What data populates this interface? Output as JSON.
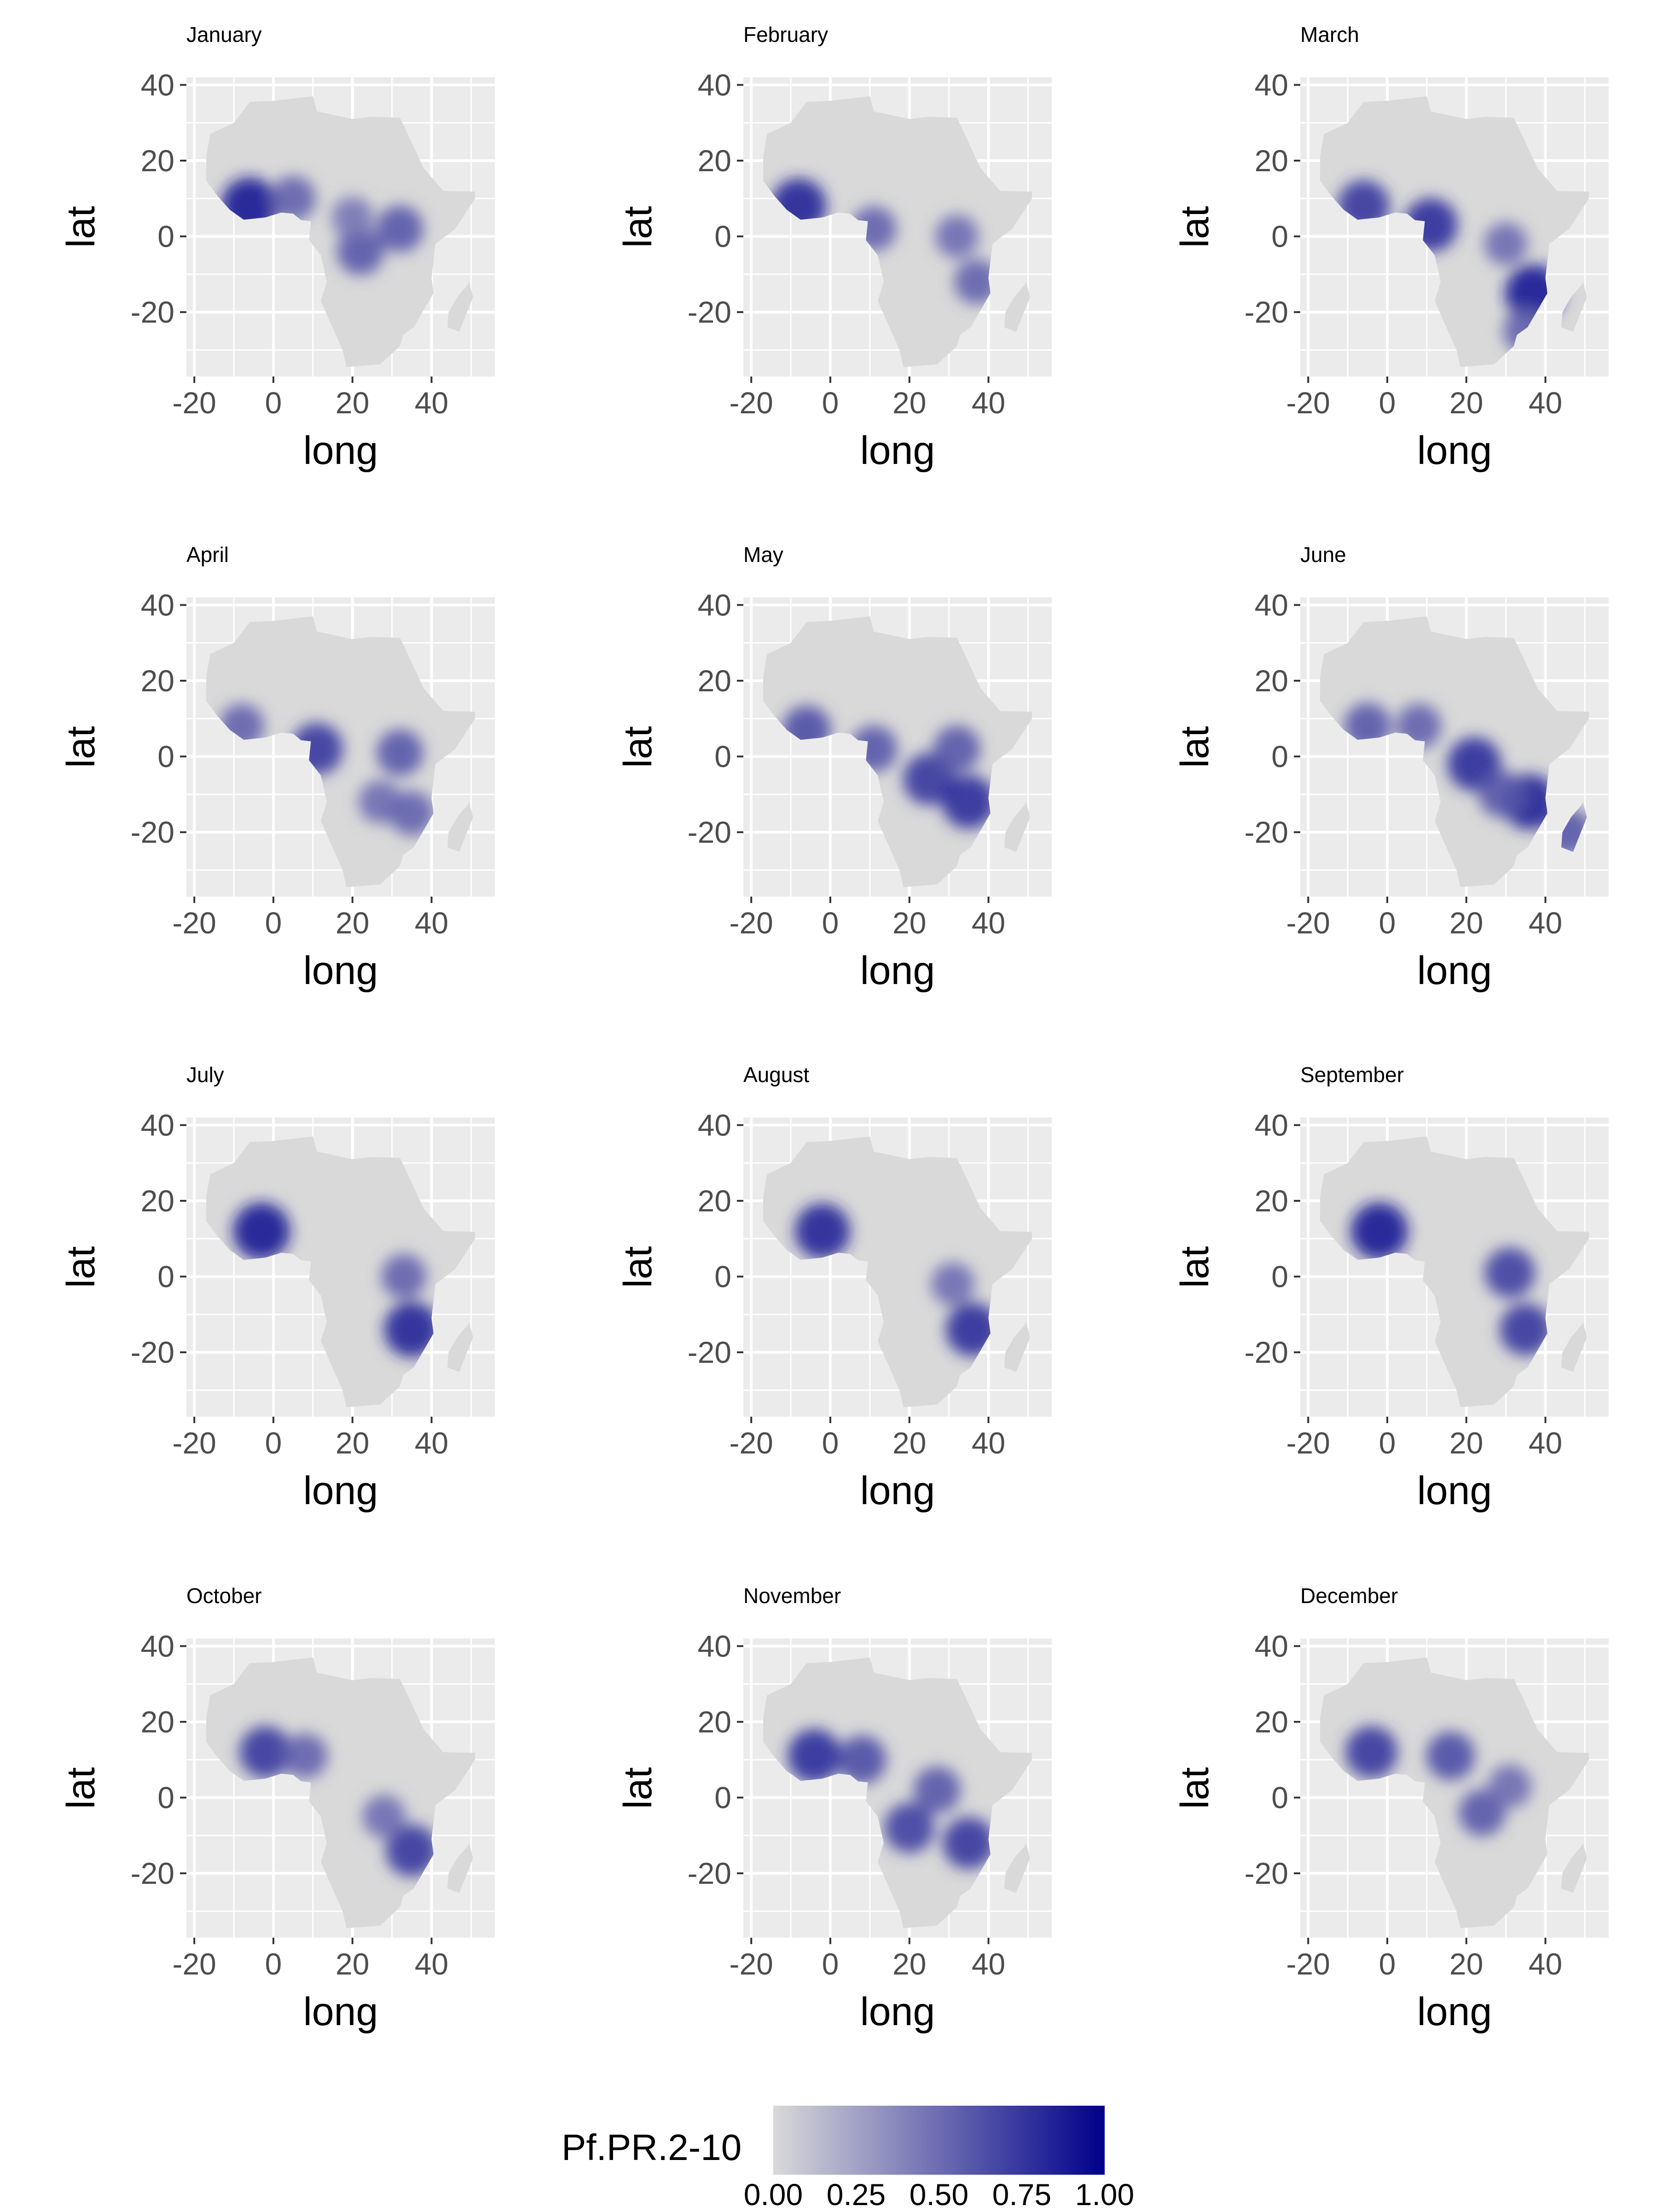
{
  "panels": [
    {
      "title": "January",
      "hotspots": [
        {
          "lon": -6,
          "lat": 8,
          "v": 0.9
        },
        {
          "lon": 5,
          "lat": 10,
          "v": 0.55
        },
        {
          "lon": 22,
          "lat": -4,
          "v": 0.6
        },
        {
          "lon": 32,
          "lat": 2,
          "v": 0.6
        },
        {
          "lon": 20,
          "lat": 5,
          "v": 0.45
        }
      ]
    },
    {
      "title": "February",
      "hotspots": [
        {
          "lon": -8,
          "lat": 8,
          "v": 0.85
        },
        {
          "lon": 11,
          "lat": 2,
          "v": 0.55
        },
        {
          "lon": 32,
          "lat": 0,
          "v": 0.5
        },
        {
          "lon": 37,
          "lat": -12,
          "v": 0.55
        }
      ]
    },
    {
      "title": "March",
      "hotspots": [
        {
          "lon": -6,
          "lat": 8,
          "v": 0.75
        },
        {
          "lon": 11,
          "lat": 3,
          "v": 0.8
        },
        {
          "lon": 37,
          "lat": -15,
          "v": 0.9
        },
        {
          "lon": 30,
          "lat": -2,
          "v": 0.5
        },
        {
          "lon": 35,
          "lat": -25,
          "v": 0.55
        }
      ]
    },
    {
      "title": "April",
      "hotspots": [
        {
          "lon": -8,
          "lat": 8,
          "v": 0.55
        },
        {
          "lon": 11,
          "lat": 2,
          "v": 0.75
        },
        {
          "lon": 32,
          "lat": 1,
          "v": 0.6
        },
        {
          "lon": 27,
          "lat": -12,
          "v": 0.5
        },
        {
          "lon": 35,
          "lat": -15,
          "v": 0.55
        }
      ]
    },
    {
      "title": "May",
      "hotspots": [
        {
          "lon": -6,
          "lat": 7,
          "v": 0.65
        },
        {
          "lon": 11,
          "lat": 2,
          "v": 0.6
        },
        {
          "lon": 25,
          "lat": -6,
          "v": 0.75
        },
        {
          "lon": 35,
          "lat": -12,
          "v": 0.8
        },
        {
          "lon": 32,
          "lat": 2,
          "v": 0.6
        }
      ]
    },
    {
      "title": "June",
      "hotspots": [
        {
          "lon": -5,
          "lat": 8,
          "v": 0.6
        },
        {
          "lon": 8,
          "lat": 8,
          "v": 0.55
        },
        {
          "lon": 22,
          "lat": -2,
          "v": 0.8
        },
        {
          "lon": 36,
          "lat": -12,
          "v": 0.85
        },
        {
          "lon": 29,
          "lat": -10,
          "v": 0.6
        },
        {
          "lon": 46,
          "lat": -20,
          "v": 0.6
        }
      ]
    },
    {
      "title": "July",
      "hotspots": [
        {
          "lon": -3,
          "lat": 12,
          "v": 0.9
        },
        {
          "lon": 35,
          "lat": -14,
          "v": 0.85
        },
        {
          "lon": 33,
          "lat": 0,
          "v": 0.55
        }
      ]
    },
    {
      "title": "August",
      "hotspots": [
        {
          "lon": -2,
          "lat": 12,
          "v": 0.85
        },
        {
          "lon": 36,
          "lat": -14,
          "v": 0.8
        },
        {
          "lon": 31,
          "lat": -2,
          "v": 0.5
        }
      ]
    },
    {
      "title": "September",
      "hotspots": [
        {
          "lon": -2,
          "lat": 12,
          "v": 0.9
        },
        {
          "lon": 31,
          "lat": 1,
          "v": 0.7
        },
        {
          "lon": 35,
          "lat": -14,
          "v": 0.75
        }
      ]
    },
    {
      "title": "October",
      "hotspots": [
        {
          "lon": -2,
          "lat": 12,
          "v": 0.75
        },
        {
          "lon": 8,
          "lat": 11,
          "v": 0.55
        },
        {
          "lon": 35,
          "lat": -14,
          "v": 0.75
        },
        {
          "lon": 28,
          "lat": -5,
          "v": 0.5
        }
      ]
    },
    {
      "title": "November",
      "hotspots": [
        {
          "lon": -4,
          "lat": 11,
          "v": 0.8
        },
        {
          "lon": 8,
          "lat": 10,
          "v": 0.65
        },
        {
          "lon": 20,
          "lat": -8,
          "v": 0.7
        },
        {
          "lon": 35,
          "lat": -12,
          "v": 0.75
        },
        {
          "lon": 27,
          "lat": 2,
          "v": 0.6
        }
      ]
    },
    {
      "title": "December",
      "hotspots": [
        {
          "lon": -4,
          "lat": 12,
          "v": 0.75
        },
        {
          "lon": 16,
          "lat": 11,
          "v": 0.65
        },
        {
          "lon": 24,
          "lat": -4,
          "v": 0.6
        },
        {
          "lon": 31,
          "lat": 3,
          "v": 0.5
        }
      ]
    }
  ],
  "axes": {
    "xlabel": "long",
    "ylabel": "lat",
    "xticks": [
      -20,
      0,
      20,
      40
    ],
    "yticks": [
      -20,
      0,
      20,
      40
    ],
    "xlim": [
      -22,
      56
    ],
    "ylim": [
      -37,
      42
    ]
  },
  "legend": {
    "title": "Pf.PR.2-10",
    "ticks": [
      "0.00",
      "0.25",
      "0.50",
      "0.75",
      "1.00"
    ],
    "low_color": "#d9d9d9",
    "high_color": "#00008b"
  },
  "colors": {
    "panel_background": "#ebebeb",
    "gridline": "#ffffff",
    "land_base": "#d9d9d9"
  }
}
